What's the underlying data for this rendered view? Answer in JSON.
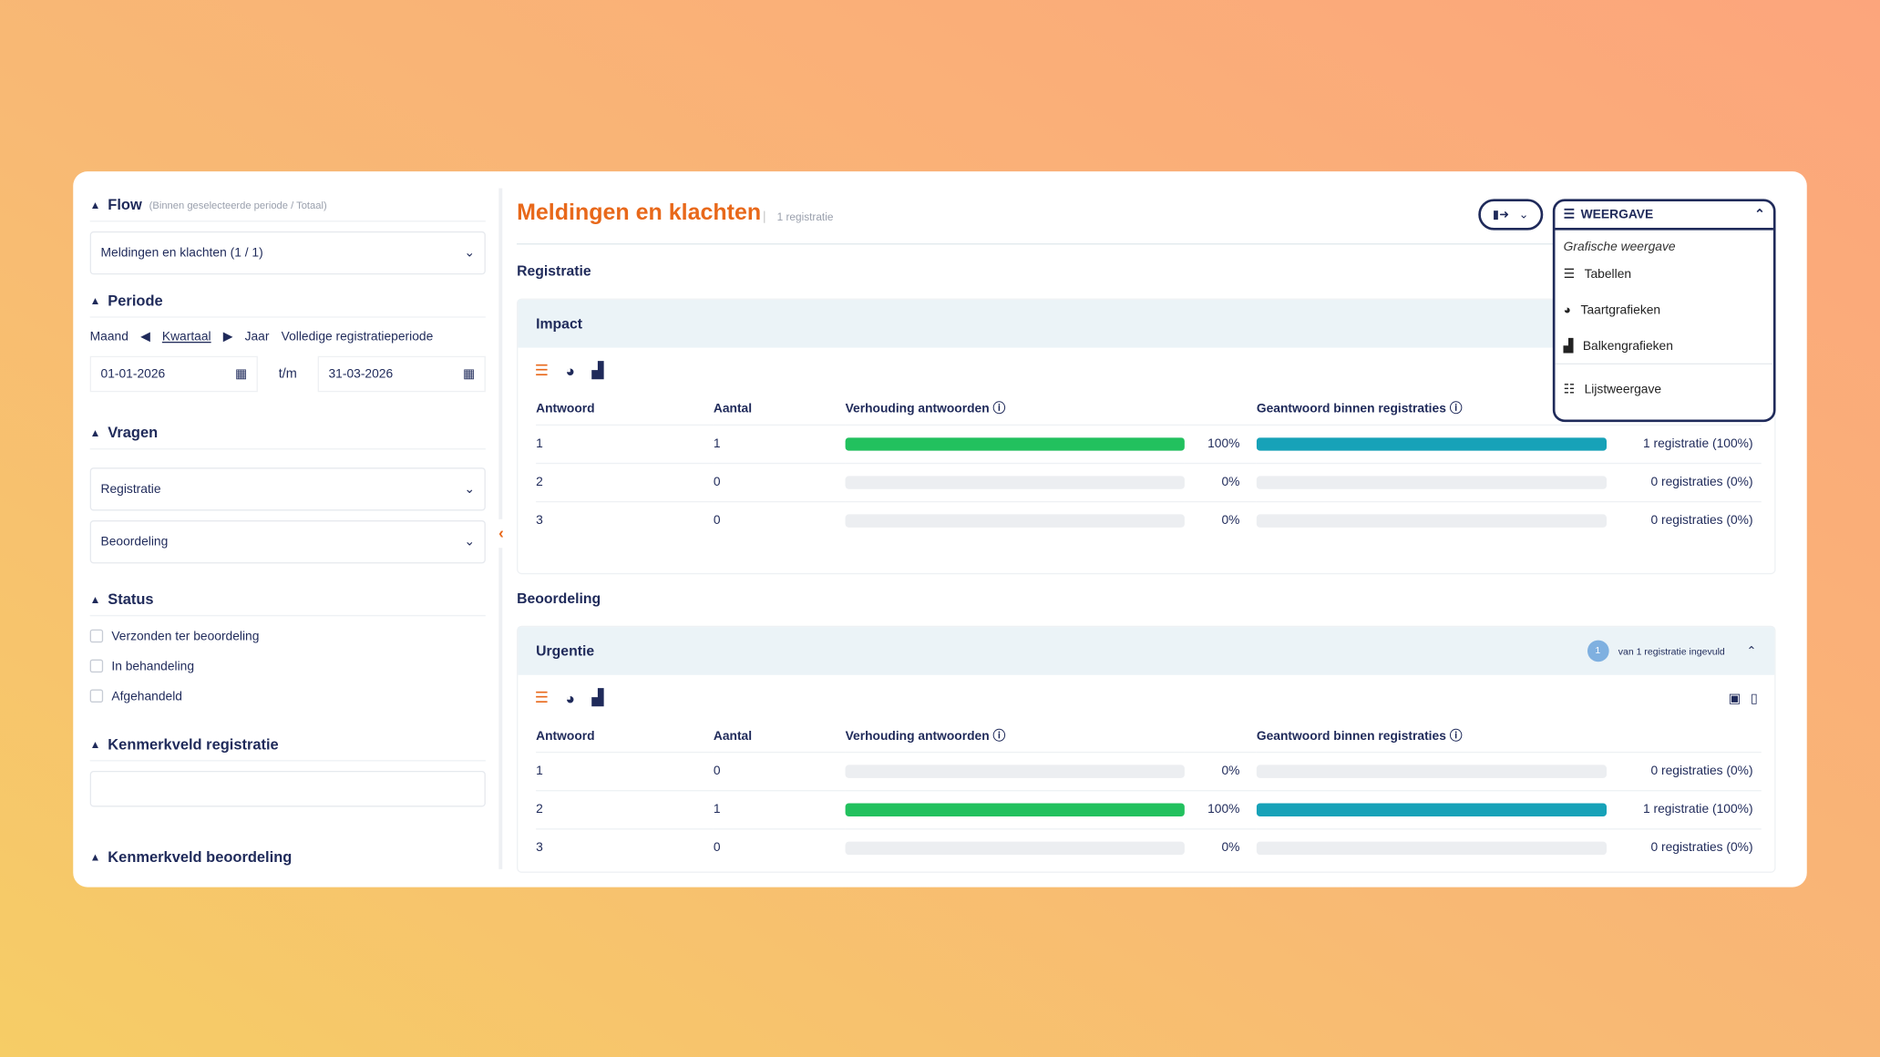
{
  "sidebar": {
    "flow": {
      "label": "Flow",
      "hint": "(Binnen geselecteerde periode / Totaal)",
      "selected": "Meldingen en klachten (1 / 1)"
    },
    "periode": {
      "label": "Periode",
      "options": [
        "Maand",
        "Kwartaal",
        "Jaar",
        "Volledige registratieperiode"
      ],
      "from": "01-01-2026",
      "to_label": "t/m",
      "to": "31-03-2026"
    },
    "vragen": {
      "label": "Vragen",
      "selects": [
        "Registratie",
        "Beoordeling"
      ]
    },
    "status": {
      "label": "Status",
      "options": [
        "Verzonden ter beoordeling",
        "In behandeling",
        "Afgehandeld"
      ]
    },
    "kenmerk_reg": {
      "label": "Kenmerkveld registratie"
    },
    "kenmerk_beo": {
      "label": "Kenmerkveld beoordeling"
    }
  },
  "header": {
    "title": "Meldingen en klachten",
    "count": "1 registratie"
  },
  "weergave": {
    "label": "WEERGAVE",
    "group": "Grafische weergave",
    "items": [
      "Tabellen",
      "Taartgrafieken",
      "Balkengrafieken",
      "Lijstweergave"
    ]
  },
  "columns": [
    "Antwoord",
    "Aantal",
    "Verhouding antwoorden",
    "Geantwoord binnen registraties"
  ],
  "colors": {
    "green": "#22c15e",
    "teal": "#17a2b8",
    "orange": "#e8681a",
    "navy": "#1f2a5a"
  },
  "sections": [
    {
      "title": "Registratie",
      "panel": "Impact",
      "rows": [
        {
          "a": "1",
          "n": "1",
          "pct": "100%",
          "v": 100,
          "reg": "1 registratie (100%)"
        },
        {
          "a": "2",
          "n": "0",
          "pct": "0%",
          "v": 0,
          "reg": "0 registraties (0%)"
        },
        {
          "a": "3",
          "n": "0",
          "pct": "0%",
          "v": 0,
          "reg": "0 registraties (0%)"
        }
      ]
    },
    {
      "title": "Beoordeling",
      "panel": "Urgentie",
      "badge": "1",
      "filled": "van 1 registratie ingevuld",
      "rows": [
        {
          "a": "1",
          "n": "0",
          "pct": "0%",
          "v": 0,
          "reg": "0 registraties (0%)"
        },
        {
          "a": "2",
          "n": "1",
          "pct": "100%",
          "v": 100,
          "reg": "1 registratie (100%)"
        },
        {
          "a": "3",
          "n": "0",
          "pct": "0%",
          "v": 0,
          "reg": "0 registraties (0%)"
        }
      ]
    }
  ]
}
